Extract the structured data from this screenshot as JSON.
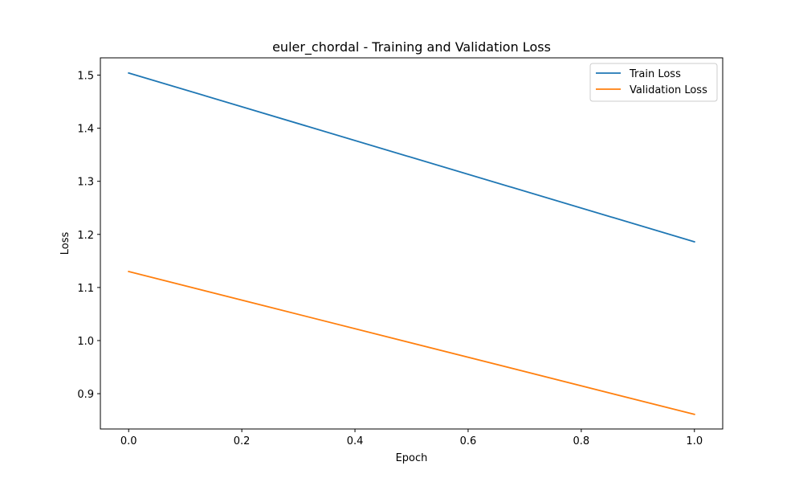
{
  "chart_data": {
    "type": "line",
    "title": "euler_chordal - Training and Validation Loss",
    "xlabel": "Epoch",
    "ylabel": "Loss",
    "xlim": [
      -0.05,
      1.05
    ],
    "ylim": [
      0.8335,
      1.5325
    ],
    "x_ticks": [
      0.0,
      0.2,
      0.4,
      0.6,
      0.8,
      1.0
    ],
    "x_tick_labels": [
      "0.0",
      "0.2",
      "0.4",
      "0.6",
      "0.8",
      "1.0"
    ],
    "y_ticks": [
      0.9,
      1.0,
      1.1,
      1.2,
      1.3,
      1.4,
      1.5
    ],
    "y_tick_labels": [
      "0.9",
      "1.0",
      "1.1",
      "1.2",
      "1.3",
      "1.4",
      "1.5"
    ],
    "grid": false,
    "legend_position": "top-right",
    "x": [
      0.0,
      1.0
    ],
    "series": [
      {
        "name": "Train Loss",
        "color": "#1f77b4",
        "values": [
          1.504,
          1.186
        ]
      },
      {
        "name": "Validation Loss",
        "color": "#ff7f0e",
        "values": [
          1.13,
          0.861
        ]
      }
    ]
  }
}
